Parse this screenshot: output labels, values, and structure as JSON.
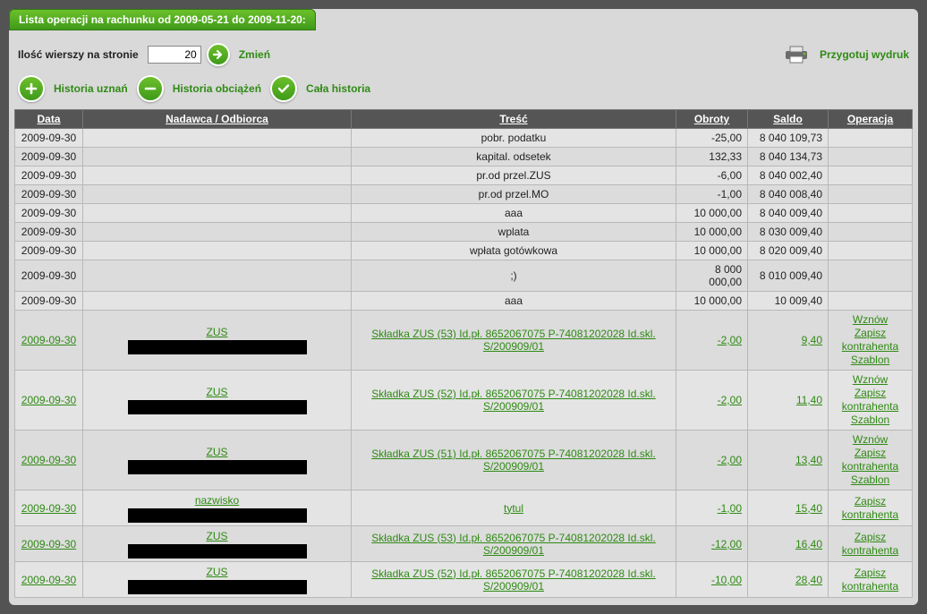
{
  "title": "Lista operacji na rachunku od 2009-05-21 do 2009-11-20:",
  "rowsLabel": "Ilość wierszy na stronie",
  "rowsValue": "20",
  "changeLabel": "Zmień",
  "filters": {
    "credits": "Historia uznań",
    "debits": "Historia obciążeń",
    "all": "Cała historia"
  },
  "printLabel": "Przygotuj wydruk",
  "columns": {
    "date": "Data",
    "senderPrefix": "Nadawca",
    "senderSep": " / ",
    "senderSuffix": "Odbiorca",
    "desc": "Treść",
    "turnover": "Obroty",
    "balance": "Saldo",
    "op": "Operacja"
  },
  "opLinks": {
    "wznow": "Wznów",
    "zapisz": "Zapisz kontrahenta",
    "szablon": "Szablon"
  },
  "plain": [
    {
      "date": "2009-09-30",
      "desc": "pobr. podatku",
      "turn": "-25,00",
      "bal": "8 040 109,73"
    },
    {
      "date": "2009-09-30",
      "desc": "kapital. odsetek",
      "turn": "132,33",
      "bal": "8 040 134,73"
    },
    {
      "date": "2009-09-30",
      "desc": "pr.od przel.ZUS",
      "turn": "-6,00",
      "bal": "8 040 002,40"
    },
    {
      "date": "2009-09-30",
      "desc": "pr.od przel.MO",
      "turn": "-1,00",
      "bal": "8 040 008,40"
    },
    {
      "date": "2009-09-30",
      "desc": "aaa",
      "turn": "10 000,00",
      "bal": "8 040 009,40"
    },
    {
      "date": "2009-09-30",
      "desc": "wplata",
      "turn": "10 000,00",
      "bal": "8 030 009,40"
    },
    {
      "date": "2009-09-30",
      "desc": "wpłata gotówkowa",
      "turn": "10 000,00",
      "bal": "8 020 009,40"
    },
    {
      "date": "2009-09-30",
      "desc": ";)",
      "turn": "8 000 000,00",
      "bal": "8 010 009,40"
    },
    {
      "date": "2009-09-30",
      "desc": "aaa",
      "turn": "10 000,00",
      "bal": "10 009,40"
    }
  ],
  "linked": [
    {
      "date": "2009-09-30",
      "sender": "ZUS",
      "desc": "Składka ZUS (53) Id.pł. 8652067075 P-74081202028 Id.skl. S/200909/01",
      "turn": "-2,00",
      "bal": "9,40",
      "ops": [
        "wznow",
        "zapisz",
        "szablon"
      ],
      "tall": true
    },
    {
      "date": "2009-09-30",
      "sender": "ZUS",
      "desc": "Składka ZUS (52) Id.pł. 8652067075 P-74081202028 Id.skl. S/200909/01",
      "turn": "-2,00",
      "bal": "11,40",
      "ops": [
        "wznow",
        "zapisz",
        "szablon"
      ],
      "tall": true
    },
    {
      "date": "2009-09-30",
      "sender": "ZUS",
      "desc": "Składka ZUS (51) Id.pł. 8652067075 P-74081202028 Id.skl. S/200909/01",
      "turn": "-2,00",
      "bal": "13,40",
      "ops": [
        "wznow",
        "zapisz",
        "szablon"
      ],
      "tall": true
    },
    {
      "date": "2009-09-30",
      "sender": "nazwisko",
      "desc": "tytul",
      "turn": "-1,00",
      "bal": "15,40",
      "ops": [
        "zapisz"
      ],
      "tall": false
    },
    {
      "date": "2009-09-30",
      "sender": "ZUS",
      "desc": "Składka ZUS (53) Id.pł. 8652067075 P-74081202028 Id.skl. S/200909/01",
      "turn": "-12,00",
      "bal": "16,40",
      "ops": [
        "zapisz"
      ],
      "tall": false
    },
    {
      "date": "2009-09-30",
      "sender": "ZUS",
      "desc": "Składka ZUS (52) Id.pł. 8652067075 P-74081202028 Id.skl. S/200909/01",
      "turn": "-10,00",
      "bal": "28,40",
      "ops": [
        "zapisz"
      ],
      "tall": false
    }
  ],
  "colors": {
    "accent": "#2f8a14",
    "headerBg": "#555555",
    "pageBg": "#535353",
    "panelBg": "#d9d9d9"
  }
}
